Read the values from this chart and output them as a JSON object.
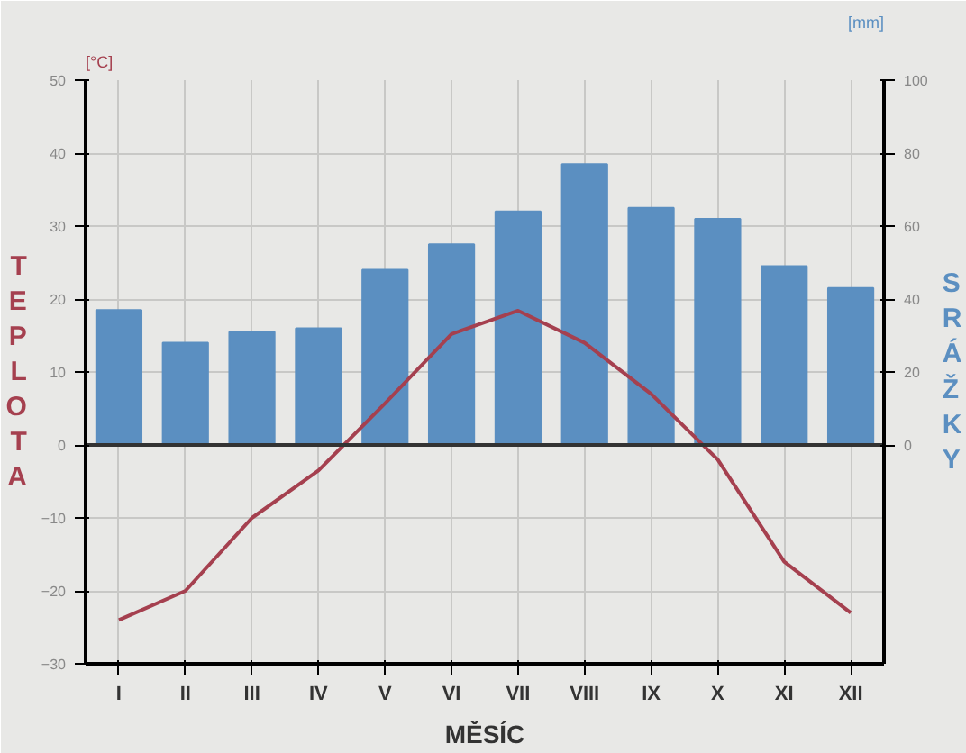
{
  "chart_data": {
    "type": "bar",
    "xlabel": "MĚSÍC",
    "ylabel": "TEPLOTA",
    "y2label": "SRÁŽKY",
    "annotations": [
      "[°C]",
      "[mm]"
    ],
    "categories": [
      "I",
      "II",
      "III",
      "IV",
      "V",
      "VI",
      "VII",
      "VIII",
      "IX",
      "X",
      "XI",
      "XII"
    ],
    "series": [
      {
        "axis": "y2",
        "color": "#5b8fc1",
        "values": [
          37,
          28,
          31,
          32,
          48,
          55,
          64,
          77,
          65,
          62,
          49,
          43
        ]
      },
      {
        "type": "line",
        "color": "#a5404f",
        "values": [
          -24,
          -20,
          -10,
          -3.5,
          5.7,
          15.2,
          18.4,
          14,
          7,
          -2,
          -16,
          -23
        ]
      }
    ],
    "ylim": [
      -30,
      50
    ],
    "yticks": [
      -30,
      -20,
      -10,
      0,
      10,
      20,
      30,
      40,
      50
    ],
    "y2lim": [
      -60,
      100
    ],
    "y2ticks": [
      0,
      20,
      40,
      60,
      80,
      100
    ],
    "grid": true,
    "marker": "none",
    "line_style": "solid"
  }
}
